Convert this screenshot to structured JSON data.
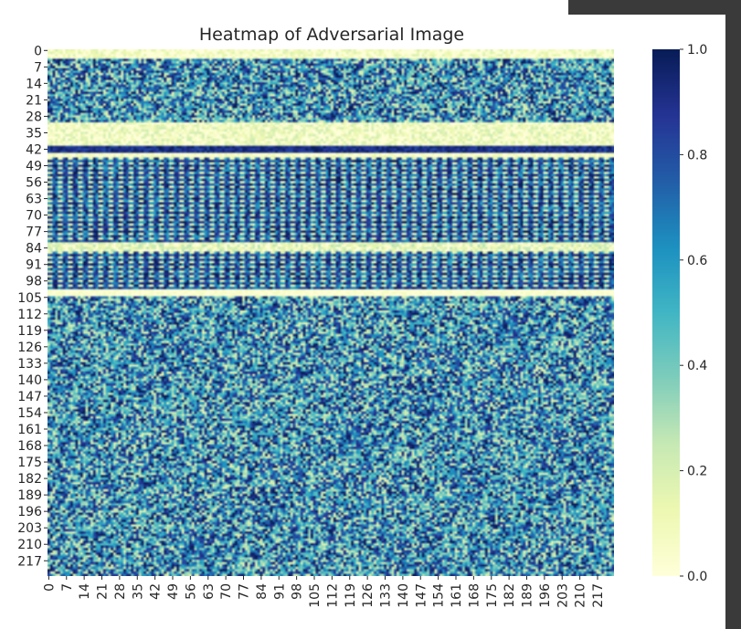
{
  "chart_data": {
    "type": "heatmap",
    "title": "Heatmap of Adversarial Image",
    "xlabel": "",
    "ylabel": "",
    "rows": 224,
    "cols": 224,
    "value_range": [
      0.0,
      1.0
    ],
    "colormap": "YlGnBu",
    "x_tick_labels": [
      "0",
      "7",
      "14",
      "21",
      "28",
      "35",
      "42",
      "49",
      "56",
      "63",
      "70",
      "77",
      "84",
      "91",
      "98",
      "105",
      "112",
      "119",
      "126",
      "133",
      "140",
      "147",
      "154",
      "161",
      "168",
      "175",
      "182",
      "189",
      "196",
      "203",
      "210",
      "217"
    ],
    "y_tick_labels": [
      "0",
      "7",
      "14",
      "21",
      "28",
      "35",
      "42",
      "49",
      "56",
      "63",
      "70",
      "77",
      "84",
      "91",
      "98",
      "105",
      "112",
      "119",
      "126",
      "133",
      "140",
      "147",
      "154",
      "161",
      "168",
      "175",
      "182",
      "189",
      "196",
      "203",
      "210",
      "217"
    ],
    "colorbar": {
      "ticks": [
        0.0,
        0.2,
        0.4,
        0.6,
        0.8,
        1.0
      ],
      "tick_labels": [
        "0.0",
        "0.2",
        "0.4",
        "0.6",
        "0.8",
        "1.0"
      ]
    },
    "row_band_means": [
      {
        "rows": [
          0,
          3
        ],
        "mean": 0.05,
        "noise": 0.15
      },
      {
        "rows": [
          4,
          30
        ],
        "mean": 0.6,
        "noise": 0.45
      },
      {
        "rows": [
          31,
          40
        ],
        "mean": 0.08,
        "noise": 0.15
      },
      {
        "rows": [
          41,
          43
        ],
        "mean": 0.9,
        "noise": 0.1
      },
      {
        "rows": [
          44,
          45
        ],
        "mean": 0.05,
        "noise": 0.1
      },
      {
        "rows": [
          46,
          81
        ],
        "mean": 0.8,
        "noise": 0.25
      },
      {
        "rows": [
          82,
          85
        ],
        "mean": 0.1,
        "noise": 0.2
      },
      {
        "rows": [
          86,
          101
        ],
        "mean": 0.8,
        "noise": 0.25
      },
      {
        "rows": [
          102,
          104
        ],
        "mean": 0.03,
        "noise": 0.05
      },
      {
        "rows": [
          105,
          223
        ],
        "mean": 0.6,
        "noise": 0.45
      }
    ]
  }
}
